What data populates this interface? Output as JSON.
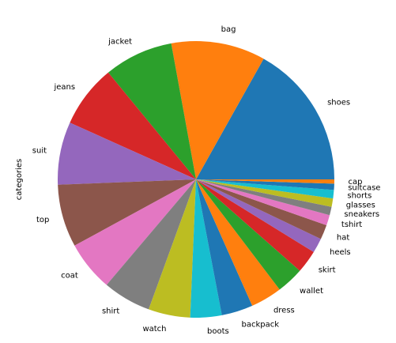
{
  "chart_data": {
    "type": "pie",
    "ylabel": "categories",
    "start_angle_deg": 0,
    "direction": "counterclockwise",
    "slices": [
      {
        "label": "shoes",
        "value": 69,
        "color": "#1f77b4"
      },
      {
        "label": "bag",
        "value": 45,
        "color": "#ff7f0e"
      },
      {
        "label": "jacket",
        "value": 33,
        "color": "#2ca02c"
      },
      {
        "label": "jeans",
        "value": 30,
        "color": "#d62728"
      },
      {
        "label": "suit",
        "value": 30,
        "color": "#9467bd"
      },
      {
        "label": "top",
        "value": 30,
        "color": "#8c564b"
      },
      {
        "label": "coat",
        "value": 24,
        "color": "#e377c2"
      },
      {
        "label": "shirt",
        "value": 23,
        "color": "#7f7f7f"
      },
      {
        "label": "watch",
        "value": 20,
        "color": "#bcbd22"
      },
      {
        "label": "boots",
        "value": 15,
        "color": "#17becf"
      },
      {
        "label": "backpack",
        "value": 15,
        "color": "#1f77b4"
      },
      {
        "label": "dress",
        "value": 15,
        "color": "#ff7f0e"
      },
      {
        "label": "wallet",
        "value": 13,
        "color": "#2ca02c"
      },
      {
        "label": "skirt",
        "value": 11,
        "color": "#d62728"
      },
      {
        "label": "heels",
        "value": 7,
        "color": "#9467bd"
      },
      {
        "label": "hat",
        "value": 7,
        "color": "#8c564b"
      },
      {
        "label": "tshirt",
        "value": 5,
        "color": "#e377c2"
      },
      {
        "label": "sneakers",
        "value": 4,
        "color": "#7f7f7f"
      },
      {
        "label": "glasses",
        "value": 4,
        "color": "#bcbd22"
      },
      {
        "label": "shorts",
        "value": 4,
        "color": "#17becf"
      },
      {
        "label": "suitcase",
        "value": 3,
        "color": "#1f77b4"
      },
      {
        "label": "cap",
        "value": 2,
        "color": "#ff7f0e"
      }
    ]
  }
}
